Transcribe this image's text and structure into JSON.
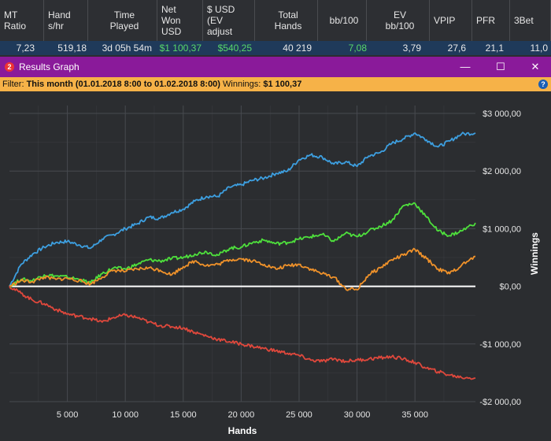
{
  "stats": {
    "headers": [
      {
        "key": "mt_ratio",
        "label1": "MT",
        "label2": "Ratio",
        "label3": "",
        "label4": ""
      },
      {
        "key": "hand_shr",
        "label1": "Hand",
        "label2": "s/hr",
        "label3": "",
        "label4": ""
      },
      {
        "key": "time_played",
        "label1": "Time",
        "label2": "Played",
        "label3": "",
        "label4": ""
      },
      {
        "key": "net_won",
        "label1": "Net",
        "label2": "Won",
        "label3": "USD",
        "label4": ""
      },
      {
        "key": "ev_adjust",
        "label1": "$ USD",
        "label2": "(EV",
        "label3": "adjust",
        "label4": ""
      },
      {
        "key": "total_hands",
        "label1": "Total",
        "label2": "Hands",
        "label3": "",
        "label4": ""
      },
      {
        "key": "bb100",
        "label1": "bb/100",
        "label2": "",
        "label3": "",
        "label4": ""
      },
      {
        "key": "ev_bb100",
        "label1": "EV",
        "label2": "bb/100",
        "label3": "",
        "label4": ""
      },
      {
        "key": "vpip",
        "label1": "VPIP",
        "label2": "",
        "label3": "",
        "label4": ""
      },
      {
        "key": "pfr",
        "label1": "PFR",
        "label2": "",
        "label3": "",
        "label4": ""
      },
      {
        "key": "threebet",
        "label1": "3Bet",
        "label2": "",
        "label3": "",
        "label4": ""
      }
    ],
    "values": [
      "7,23",
      "519,18",
      "3d 05h 54m",
      "$1 100,37",
      "$540,25",
      "40 219",
      "7,08",
      "3,79",
      "27,6",
      "21,1",
      "11,0"
    ]
  },
  "window": {
    "icon_text": "2",
    "title": "Results Graph",
    "minimize": "—",
    "maximize": "☐",
    "close": "✕"
  },
  "filter": {
    "prefix": "Filter: ",
    "period": "This month (01.01.2018 8:00 to 01.02.2018 8:00)",
    "winnings_label": "  Winnings: ",
    "winnings_value": "$1 100,37",
    "help_icon": "?"
  },
  "colors": {
    "blue": "#3d9fe0",
    "green": "#4ee03c",
    "orange": "#f0922a",
    "red": "#e0483c",
    "zero_line": "#ffffff",
    "background": "#2b2d30",
    "grid": "#474a4f"
  },
  "chart_data": {
    "type": "line",
    "xlabel": "Hands",
    "ylabel": "Winnings",
    "xlim": [
      0,
      40219
    ],
    "ylim": [
      -2000,
      3000
    ],
    "x_ticks": [
      5000,
      10000,
      15000,
      20000,
      25000,
      30000,
      35000
    ],
    "x_tick_labels": [
      "5 000",
      "10 000",
      "15 000",
      "20 000",
      "25 000",
      "30 000",
      "35 000"
    ],
    "y_ticks": [
      3000,
      2000,
      1000,
      0,
      -1000,
      -2000
    ],
    "y_tick_labels": [
      "$3 000,00",
      "$2 000,00",
      "$1 000,00",
      "$0,00",
      "-$1 000,00",
      "-$2 000,00"
    ],
    "grid": true,
    "series": [
      {
        "color": "blue",
        "x": [
          0,
          1000,
          2000,
          3000,
          4000,
          5000,
          6000,
          7000,
          8000,
          9000,
          10000,
          11000,
          12000,
          13000,
          14000,
          15000,
          16000,
          17000,
          18000,
          19000,
          20000,
          21000,
          22000,
          23000,
          24000,
          25000,
          26000,
          27000,
          28000,
          29000,
          30000,
          31000,
          32000,
          33000,
          34000,
          35000,
          36000,
          37000,
          38000,
          39000,
          40219
        ],
        "values": [
          0,
          380,
          560,
          680,
          760,
          780,
          720,
          660,
          820,
          900,
          1000,
          1080,
          1200,
          1180,
          1280,
          1340,
          1480,
          1560,
          1560,
          1720,
          1760,
          1840,
          1880,
          1960,
          2000,
          2200,
          2280,
          2240,
          2120,
          2160,
          2080,
          2260,
          2320,
          2480,
          2560,
          2660,
          2540,
          2420,
          2520,
          2640,
          2660
        ]
      },
      {
        "color": "green",
        "x": [
          0,
          1000,
          2000,
          3000,
          4000,
          5000,
          6000,
          7000,
          8000,
          9000,
          10000,
          11000,
          12000,
          13000,
          14000,
          15000,
          16000,
          17000,
          18000,
          19000,
          20000,
          21000,
          22000,
          23000,
          24000,
          25000,
          26000,
          27000,
          28000,
          29000,
          30000,
          31000,
          32000,
          33000,
          34000,
          35000,
          36000,
          37000,
          38000,
          39000,
          40219
        ],
        "values": [
          0,
          120,
          100,
          200,
          180,
          160,
          120,
          60,
          220,
          320,
          300,
          380,
          460,
          440,
          480,
          500,
          560,
          600,
          540,
          660,
          680,
          760,
          800,
          740,
          760,
          820,
          860,
          900,
          780,
          920,
          860,
          960,
          1040,
          1140,
          1400,
          1440,
          1200,
          960,
          880,
          960,
          1100
        ]
      },
      {
        "color": "orange",
        "x": [
          0,
          1000,
          2000,
          3000,
          4000,
          5000,
          6000,
          7000,
          8000,
          9000,
          10000,
          11000,
          12000,
          13000,
          14000,
          15000,
          16000,
          17000,
          18000,
          19000,
          20000,
          21000,
          22000,
          23000,
          24000,
          25000,
          26000,
          27000,
          28000,
          29000,
          30000,
          31000,
          32000,
          33000,
          34000,
          35000,
          36000,
          37000,
          38000,
          39000,
          40219
        ],
        "values": [
          0,
          100,
          80,
          160,
          120,
          140,
          100,
          40,
          160,
          280,
          260,
          300,
          320,
          280,
          200,
          340,
          440,
          360,
          380,
          460,
          480,
          440,
          380,
          300,
          360,
          380,
          300,
          220,
          160,
          -40,
          -60,
          200,
          320,
          460,
          540,
          640,
          480,
          300,
          220,
          360,
          520
        ]
      },
      {
        "color": "red",
        "x": [
          0,
          1000,
          2000,
          3000,
          4000,
          5000,
          6000,
          7000,
          8000,
          9000,
          10000,
          11000,
          12000,
          13000,
          14000,
          15000,
          16000,
          17000,
          18000,
          19000,
          20000,
          21000,
          22000,
          23000,
          24000,
          25000,
          26000,
          27000,
          28000,
          29000,
          30000,
          31000,
          32000,
          33000,
          34000,
          35000,
          36000,
          37000,
          38000,
          39000,
          40219
        ],
        "values": [
          0,
          -120,
          -240,
          -300,
          -400,
          -480,
          -520,
          -560,
          -620,
          -540,
          -500,
          -540,
          -620,
          -680,
          -700,
          -720,
          -800,
          -860,
          -920,
          -960,
          -1000,
          -1040,
          -1080,
          -1120,
          -1160,
          -1200,
          -1280,
          -1300,
          -1260,
          -1300,
          -1280,
          -1260,
          -1240,
          -1220,
          -1260,
          -1320,
          -1420,
          -1480,
          -1540,
          -1580,
          -1590
        ]
      }
    ]
  }
}
